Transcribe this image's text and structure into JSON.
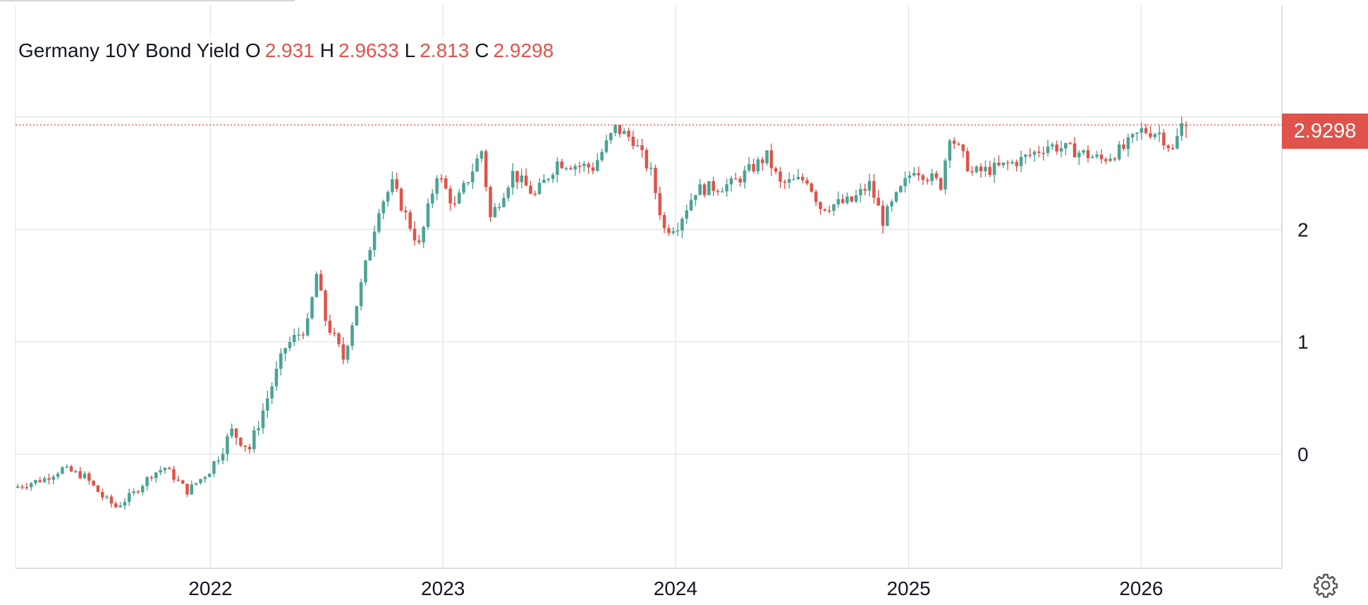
{
  "legend": {
    "symbol": "Germany 10Y Bond Yield",
    "open_label": "O",
    "open": "2.931",
    "high_label": "H",
    "high": "2.9633",
    "low_label": "L",
    "low": "2.813",
    "close_label": "C",
    "close": "2.9298"
  },
  "last_price_label": "2.9298",
  "settings_icon": "gear-icon",
  "colors": {
    "up": "#4aa394",
    "down": "#e0534a",
    "grid": "#e6e6e6",
    "price_line": "#e0534a"
  },
  "chart_data": {
    "type": "candlestick",
    "title": "Germany 10Y Bond Yield",
    "xlabel": "",
    "ylabel": "",
    "x_ticks": [
      "2022",
      "2023",
      "2024",
      "2025",
      "2026"
    ],
    "y_ticks": [
      "0",
      "1",
      "2"
    ],
    "x_range": [
      "2021-03-01",
      "2026-08-10"
    ],
    "ylim": [
      -1.0,
      3.0
    ],
    "last_close": 2.9298,
    "grid": true,
    "legend_position": "top-left",
    "anchors": [
      [
        "2021-03-01",
        -0.3
      ],
      [
        "2021-04-19",
        -0.22
      ],
      [
        "2021-05-17",
        -0.13
      ],
      [
        "2021-06-21",
        -0.2
      ],
      [
        "2021-07-19",
        -0.38
      ],
      [
        "2021-08-09",
        -0.47
      ],
      [
        "2021-09-06",
        -0.35
      ],
      [
        "2021-10-04",
        -0.18
      ],
      [
        "2021-10-25",
        -0.12
      ],
      [
        "2021-11-29",
        -0.33
      ],
      [
        "2022-01-03",
        -0.15
      ],
      [
        "2022-02-07",
        0.2
      ],
      [
        "2022-03-07",
        0.05
      ],
      [
        "2022-04-04",
        0.5
      ],
      [
        "2022-05-02",
        0.95
      ],
      [
        "2022-06-06",
        1.15
      ],
      [
        "2022-06-20",
        1.6
      ],
      [
        "2022-07-04",
        1.2
      ],
      [
        "2022-08-01",
        0.85
      ],
      [
        "2022-08-29",
        1.5
      ],
      [
        "2022-09-26",
        2.2
      ],
      [
        "2022-10-17",
        2.4
      ],
      [
        "2022-11-28",
        1.85
      ],
      [
        "2022-12-26",
        2.5
      ],
      [
        "2023-01-23",
        2.2
      ],
      [
        "2023-03-06",
        2.7
      ],
      [
        "2023-03-20",
        2.1
      ],
      [
        "2023-04-24",
        2.5
      ],
      [
        "2023-05-29",
        2.3
      ],
      [
        "2023-07-03",
        2.6
      ],
      [
        "2023-08-28",
        2.55
      ],
      [
        "2023-10-02",
        2.9
      ],
      [
        "2023-10-30",
        2.8
      ],
      [
        "2023-11-27",
        2.5
      ],
      [
        "2023-12-18",
        2.0
      ],
      [
        "2024-01-08",
        2.05
      ],
      [
        "2024-02-05",
        2.35
      ],
      [
        "2024-04-01",
        2.4
      ],
      [
        "2024-05-27",
        2.65
      ],
      [
        "2024-06-17",
        2.4
      ],
      [
        "2024-07-29",
        2.45
      ],
      [
        "2024-08-19",
        2.2
      ],
      [
        "2024-10-07",
        2.25
      ],
      [
        "2024-11-04",
        2.4
      ],
      [
        "2024-11-25",
        2.08
      ],
      [
        "2025-01-13",
        2.55
      ],
      [
        "2025-02-24",
        2.4
      ],
      [
        "2025-03-10",
        2.85
      ],
      [
        "2025-04-14",
        2.5
      ],
      [
        "2025-05-26",
        2.55
      ],
      [
        "2025-06-30",
        2.62
      ],
      [
        "2025-08-11",
        2.75
      ],
      [
        "2025-09-22",
        2.7
      ],
      [
        "2025-11-03",
        2.62
      ],
      [
        "2025-12-08",
        2.72
      ],
      [
        "2026-01-05",
        2.88
      ],
      [
        "2026-02-02",
        2.86
      ],
      [
        "2026-02-23",
        2.7
      ],
      [
        "2026-03-09",
        2.93
      ]
    ]
  }
}
